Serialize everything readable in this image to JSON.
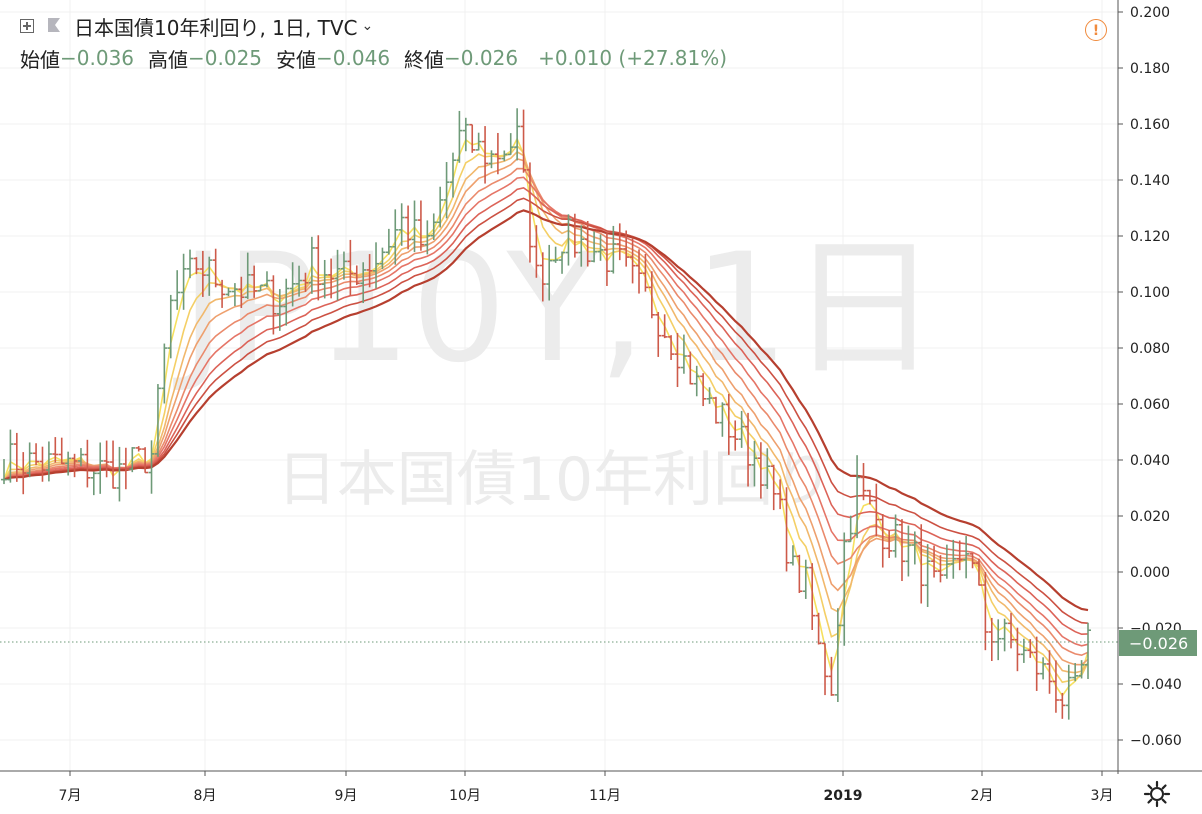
{
  "header": {
    "symbol_title": "日本国債10年利回り, 1日, TVC",
    "ohlc": [
      {
        "label": "始値",
        "value": "−0.036"
      },
      {
        "label": "高値",
        "value": "−0.025"
      },
      {
        "label": "安値",
        "value": "−0.046"
      },
      {
        "label": "終値",
        "value": "−0.026"
      }
    ],
    "change": "+0.010 (+27.81%)"
  },
  "watermark": {
    "ticker": "JP10Y, 1日",
    "name": "日本国債10年利回り"
  },
  "last_price_label": "−0.026",
  "colors": {
    "up": "#6e9a78",
    "down": "#cd5a4a",
    "ribbon": [
      "#f6e05e",
      "#f4cf66",
      "#f1b86c",
      "#eea06e",
      "#ea8a6c",
      "#e57567",
      "#dc6358",
      "#cc5143",
      "#b63f2f"
    ]
  },
  "chart_data": {
    "type": "ohlc",
    "y_axis": {
      "min": -0.07,
      "max": 0.2,
      "ticks": [
        "0.200",
        "0.180",
        "0.160",
        "0.140",
        "0.120",
        "0.100",
        "0.080",
        "0.060",
        "0.040",
        "0.020",
        "0.000",
        "−0.020",
        "−0.040",
        "−0.060"
      ]
    },
    "x_axis": {
      "ticks": [
        "7月",
        "8月",
        "9月",
        "10月",
        "11月",
        "2019",
        "2月",
        "3月"
      ]
    },
    "close_path": [
      [
        0,
        0.04
      ],
      [
        10,
        0.038
      ],
      [
        18,
        0.036
      ],
      [
        23,
        0.042
      ],
      [
        26,
        0.095
      ],
      [
        30,
        0.11
      ],
      [
        33,
        0.105
      ],
      [
        38,
        0.1
      ],
      [
        43,
        0.098
      ],
      [
        48,
        0.11
      ],
      [
        53,
        0.105
      ],
      [
        58,
        0.112
      ],
      [
        62,
        0.125
      ],
      [
        66,
        0.115
      ],
      [
        71,
        0.155
      ],
      [
        76,
        0.148
      ],
      [
        80,
        0.155
      ],
      [
        83,
        0.105
      ],
      [
        87,
        0.12
      ],
      [
        92,
        0.115
      ],
      [
        96,
        0.11
      ],
      [
        101,
        0.095
      ],
      [
        105,
        0.08
      ],
      [
        109,
        0.062
      ],
      [
        113,
        0.052
      ],
      [
        118,
        0.038
      ],
      [
        121,
        0.02
      ],
      [
        123,
        0.0
      ],
      [
        125,
        -0.005
      ],
      [
        127,
        -0.028
      ],
      [
        129,
        -0.04
      ],
      [
        131,
        0.01
      ],
      [
        133,
        0.03
      ],
      [
        137,
        0.015
      ],
      [
        142,
        0.005
      ],
      [
        146,
        -0.008
      ],
      [
        150,
        0.01
      ],
      [
        153,
        -0.02
      ],
      [
        157,
        -0.025
      ],
      [
        160,
        -0.032
      ],
      [
        163,
        -0.038
      ],
      [
        165,
        -0.045
      ],
      [
        167,
        -0.044
      ],
      [
        169,
        -0.026
      ]
    ],
    "ema_ribbon": [
      {
        "period": 3,
        "points": [
          [
            0,
            0.046
          ],
          [
            24,
            0.04
          ],
          [
            30,
            0.088
          ],
          [
            50,
            0.095
          ],
          [
            62,
            0.106
          ],
          [
            72,
            0.13
          ],
          [
            82,
            0.143
          ],
          [
            88,
            0.132
          ],
          [
            98,
            0.118
          ],
          [
            104,
            0.11
          ],
          [
            110,
            0.085
          ],
          [
            116,
            0.06
          ],
          [
            122,
            0.05
          ],
          [
            128,
            0.018
          ],
          [
            136,
            0.01
          ],
          [
            144,
            0.005
          ],
          [
            152,
            -0.004
          ],
          [
            160,
            -0.01
          ],
          [
            168,
            -0.02
          ]
        ]
      },
      {
        "period": 9,
        "points": [
          [
            0,
            0.045
          ],
          [
            24,
            0.04
          ],
          [
            30,
            0.07
          ],
          [
            50,
            0.088
          ],
          [
            62,
            0.1
          ],
          [
            72,
            0.115
          ],
          [
            82,
            0.135
          ],
          [
            90,
            0.13
          ],
          [
            100,
            0.122
          ],
          [
            108,
            0.114
          ],
          [
            116,
            0.085
          ],
          [
            124,
            0.055
          ],
          [
            132,
            0.035
          ],
          [
            144,
            0.02
          ],
          [
            156,
            0.007
          ],
          [
            168,
            0.007
          ]
        ]
      }
    ]
  }
}
